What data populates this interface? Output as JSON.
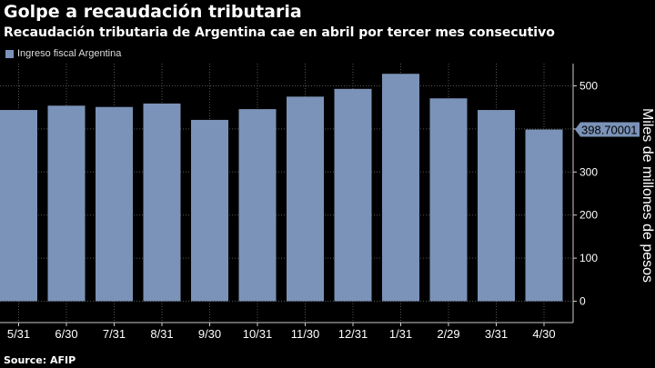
{
  "title": "Golpe a recaudación tributaria",
  "subtitle": "Recaudación tributaria de Argentina cae en abril por tercer mes consecutivo",
  "source": "Source: AFIP",
  "colors": {
    "bar": "#7b93b8",
    "background": "#000000"
  },
  "chart_data": {
    "type": "bar",
    "categories": [
      "5/31",
      "6/30",
      "7/31",
      "8/31",
      "9/30",
      "10/31",
      "11/30",
      "12/31",
      "1/31",
      "2/29",
      "3/31",
      "4/30"
    ],
    "series": [
      {
        "name": "Ingreso fiscal Argentina",
        "values": [
          444,
          454,
          451,
          459,
          421,
          446,
          475,
          493,
          528,
          471,
          444,
          398.70001
        ]
      }
    ],
    "ylabel": "Miles de millones de pesos",
    "ylim": [
      0,
      500
    ],
    "yticks": [
      0,
      100,
      200,
      300,
      400,
      500
    ],
    "last_value_label": "398.70001",
    "legend": "top-left",
    "grid": true
  }
}
